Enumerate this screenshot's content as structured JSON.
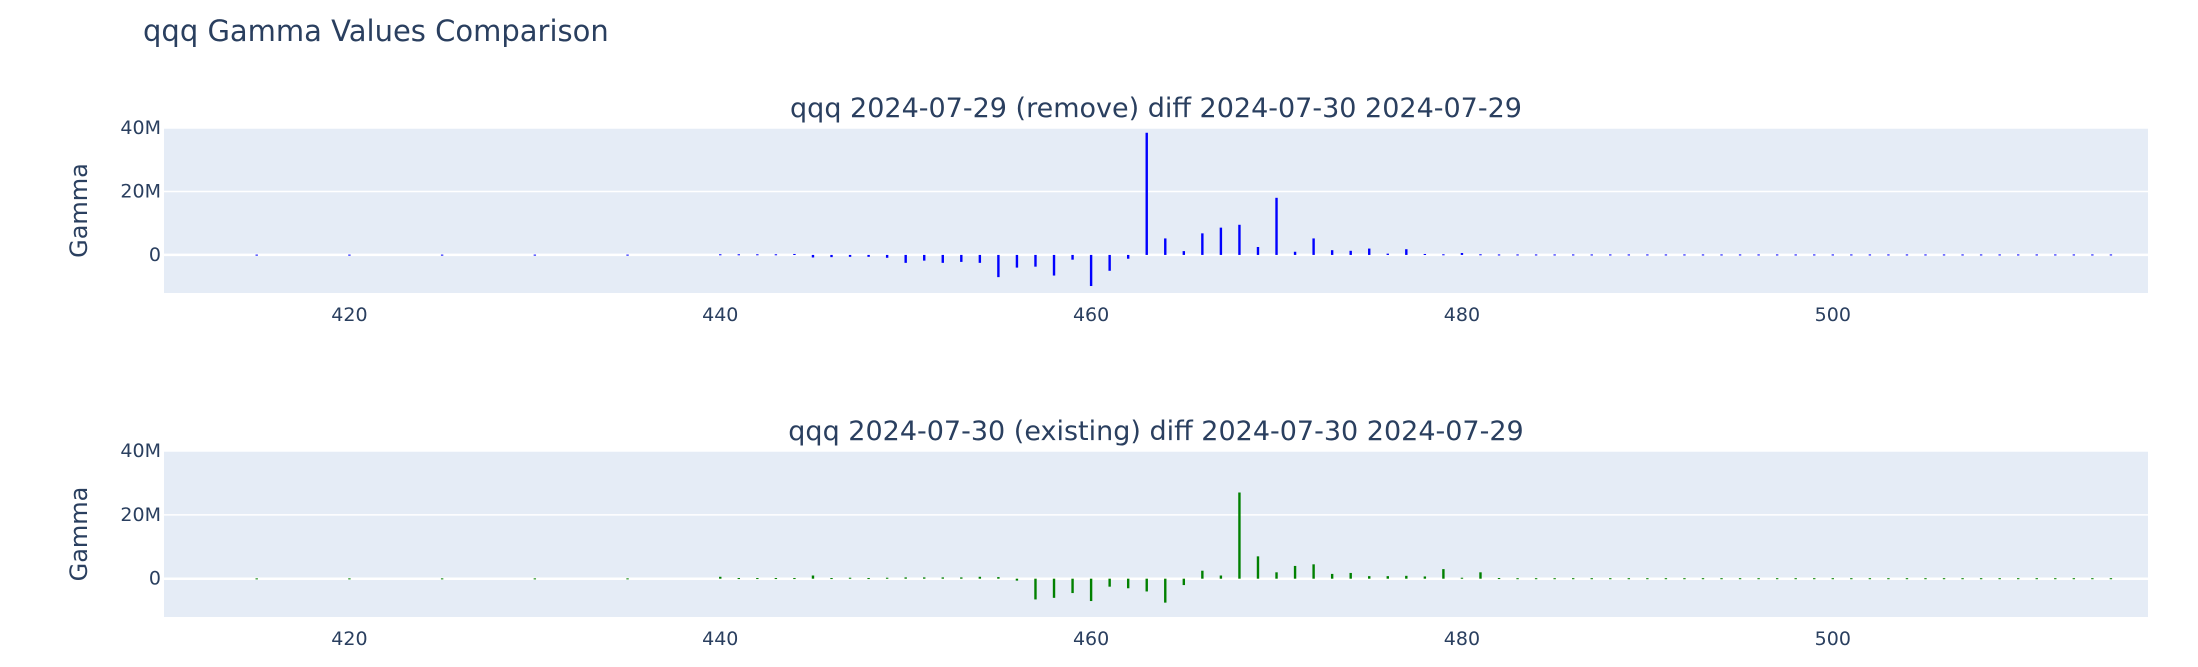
{
  "title": "qqq Gamma Values Comparison",
  "chart_data": [
    {
      "type": "bar",
      "title": "qqq 2024-07-29 (remove) diff 2024-07-30 2024-07-29",
      "xlabel": "",
      "ylabel": "Gamma",
      "xlim": [
        410,
        517
      ],
      "ylim": [
        -12000000,
        40000000
      ],
      "x_ticks": [
        420,
        440,
        460,
        480,
        500
      ],
      "x_tick_labels": [
        "420",
        "440",
        "460",
        "480",
        "500"
      ],
      "y_ticks": [
        0,
        20000000,
        40000000
      ],
      "y_tick_labels": [
        "0",
        "20M",
        "40M"
      ],
      "grid": true,
      "color": "#0000ff",
      "x": [
        415,
        420,
        425,
        430,
        435,
        440,
        441,
        442,
        443,
        444,
        445,
        446,
        447,
        448,
        449,
        450,
        451,
        452,
        453,
        454,
        455,
        456,
        457,
        458,
        459,
        460,
        461,
        462,
        463,
        464,
        465,
        466,
        467,
        468,
        469,
        470,
        471,
        472,
        473,
        474,
        475,
        476,
        477,
        478,
        479,
        480,
        481,
        482,
        483,
        484,
        485,
        486,
        487,
        488,
        489,
        490,
        491,
        492,
        493,
        494,
        495,
        496,
        497,
        498,
        499,
        500,
        501,
        502,
        503,
        504,
        505,
        506,
        507,
        508,
        509,
        510,
        511,
        512,
        513,
        514,
        515
      ],
      "values": [
        100000,
        100000,
        100000,
        100000,
        100000,
        200000,
        200000,
        200000,
        200000,
        300000,
        -800000,
        -700000,
        -600000,
        -600000,
        -900000,
        -2500000,
        -1800000,
        -2500000,
        -2200000,
        -2500000,
        -7000000,
        -4000000,
        -3700000,
        -6500000,
        -1500000,
        -9800000,
        -5000000,
        -1200000,
        38500000,
        5200000,
        1200000,
        6800000,
        8600000,
        9500000,
        2500000,
        18000000,
        1000000,
        5200000,
        1500000,
        1300000,
        2000000,
        400000,
        1800000,
        300000,
        200000,
        600000,
        200000,
        150000,
        150000,
        150000,
        150000,
        150000,
        150000,
        150000,
        150000,
        150000,
        150000,
        150000,
        150000,
        150000,
        150000,
        150000,
        150000,
        150000,
        150000,
        150000,
        150000,
        150000,
        150000,
        150000,
        150000,
        150000,
        150000,
        150000,
        150000,
        150000,
        150000,
        150000,
        150000,
        150000,
        150000
      ]
    },
    {
      "type": "bar",
      "title": "qqq 2024-07-30 (existing) diff 2024-07-30 2024-07-29",
      "xlabel": "",
      "ylabel": "Gamma",
      "xlim": [
        410,
        517
      ],
      "ylim": [
        -12000000,
        40000000
      ],
      "x_ticks": [
        420,
        440,
        460,
        480,
        500
      ],
      "x_tick_labels": [
        "420",
        "440",
        "460",
        "480",
        "500"
      ],
      "y_ticks": [
        0,
        20000000,
        40000000
      ],
      "y_tick_labels": [
        "0",
        "20M",
        "40M"
      ],
      "grid": true,
      "color": "#008000",
      "x": [
        415,
        420,
        425,
        430,
        435,
        440,
        441,
        442,
        443,
        444,
        445,
        446,
        447,
        448,
        449,
        450,
        451,
        452,
        453,
        454,
        455,
        456,
        457,
        458,
        459,
        460,
        461,
        462,
        463,
        464,
        465,
        466,
        467,
        468,
        469,
        470,
        471,
        472,
        473,
        474,
        475,
        476,
        477,
        478,
        479,
        480,
        481,
        482,
        483,
        484,
        485,
        486,
        487,
        488,
        489,
        490,
        491,
        492,
        493,
        494,
        495,
        496,
        497,
        498,
        499,
        500,
        501,
        502,
        503,
        504,
        505,
        506,
        507,
        508,
        509,
        510,
        511,
        512,
        513,
        514,
        515
      ],
      "values": [
        100000,
        100000,
        100000,
        100000,
        100000,
        600000,
        200000,
        200000,
        200000,
        200000,
        1000000,
        200000,
        300000,
        200000,
        300000,
        400000,
        400000,
        400000,
        400000,
        600000,
        500000,
        -600000,
        -6500000,
        -6000000,
        -4500000,
        -7000000,
        -2500000,
        -3000000,
        -4000000,
        -7500000,
        -2000000,
        2500000,
        1000000,
        27000000,
        7000000,
        2000000,
        4000000,
        4500000,
        1500000,
        1800000,
        800000,
        800000,
        900000,
        700000,
        3000000,
        300000,
        2000000,
        200000,
        150000,
        150000,
        150000,
        150000,
        150000,
        150000,
        150000,
        150000,
        150000,
        150000,
        150000,
        150000,
        150000,
        150000,
        150000,
        150000,
        150000,
        150000,
        150000,
        150000,
        150000,
        150000,
        150000,
        150000,
        150000,
        150000,
        150000,
        150000,
        150000,
        150000,
        150000,
        150000,
        150000
      ]
    }
  ]
}
